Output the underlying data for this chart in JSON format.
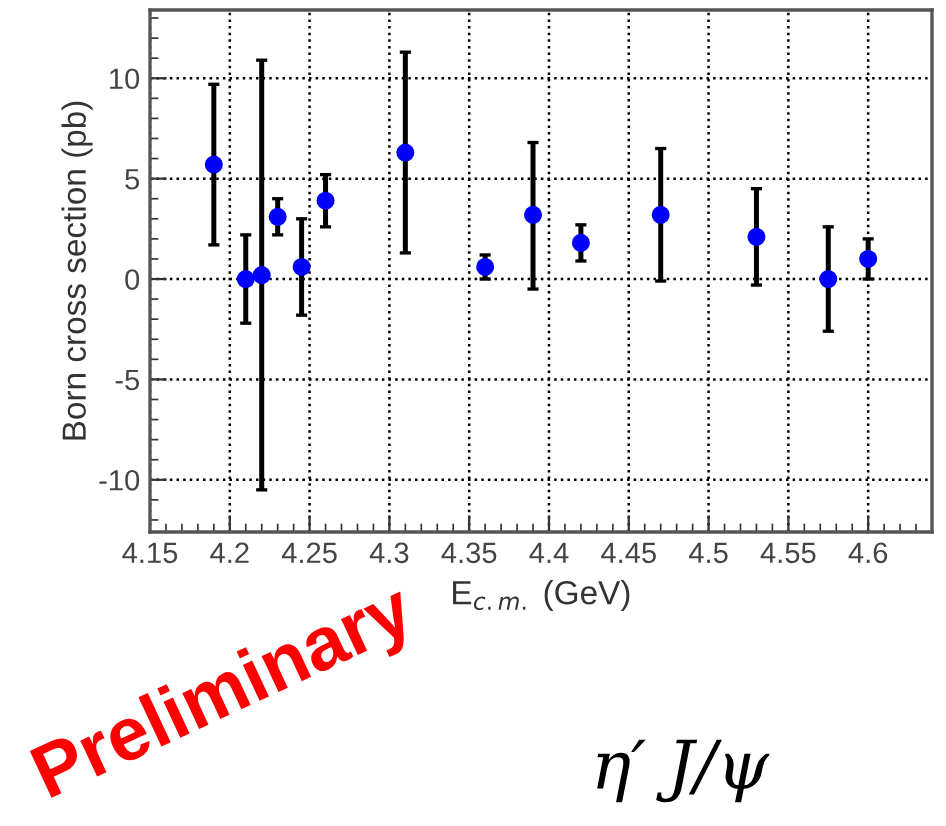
{
  "chart_data": {
    "type": "scatter",
    "xlabel": "E$_{c.m.}$ (GeV)",
    "ylabel": "Born cross section (pb)",
    "annotations": [
      "Preliminary",
      "η′ J/ψ"
    ],
    "x": [
      4.19,
      4.21,
      4.22,
      4.23,
      4.245,
      4.26,
      4.31,
      4.36,
      4.39,
      4.42,
      4.47,
      4.53,
      4.575,
      4.6
    ],
    "series": [
      {
        "color": "#0000ff",
        "values": [
          5.7,
          0,
          0.2,
          3.1,
          0.6,
          3.9,
          6.3,
          0.6,
          3.2,
          1.8,
          3.2,
          2.1,
          0,
          1.0
        ],
        "errors": [
          [
            1.7,
            9.7
          ],
          [
            -2.2,
            2.2
          ],
          [
            -10.5,
            10.9
          ],
          [
            2.2,
            4.0
          ],
          [
            -1.8,
            3.0
          ],
          [
            2.6,
            5.2
          ],
          [
            1.3,
            11.3
          ],
          [
            0,
            1.2
          ],
          [
            -0.5,
            6.8
          ],
          [
            0.9,
            2.7
          ],
          [
            -0.1,
            6.5
          ],
          [
            -0.3,
            4.5
          ],
          [
            -2.6,
            2.6
          ],
          [
            0,
            2.0
          ]
        ]
      }
    ],
    "xlim": [
      4.15,
      4.64
    ],
    "xticks": [
      4.15,
      4.2,
      4.25,
      4.3,
      4.35,
      4.4,
      4.45,
      4.5,
      4.55,
      4.6
    ],
    "ylim": [
      -12.6,
      13.4
    ],
    "yticks": [
      -10,
      -5,
      0,
      5,
      10
    ],
    "grid": true,
    "marker": "circle"
  }
}
